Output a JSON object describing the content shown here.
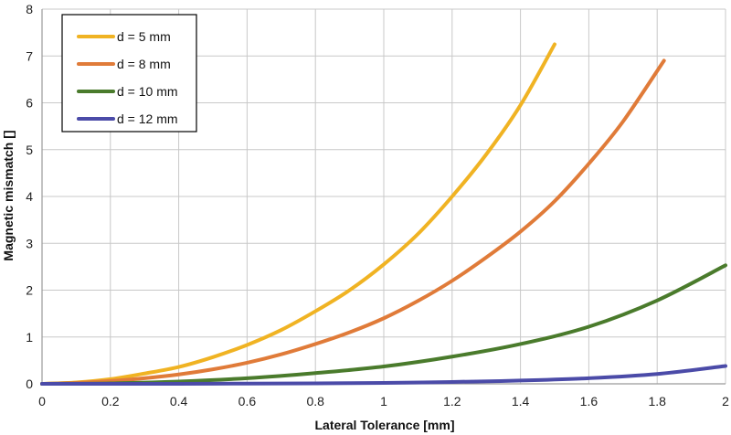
{
  "chart_data": {
    "type": "line",
    "xlabel": "Lateral Tolerance [mm]",
    "ylabel": "Magnetic mismatch []",
    "xlim": [
      0,
      2
    ],
    "ylim": [
      0,
      8
    ],
    "x_ticks": [
      "0",
      "0.2",
      "0.4",
      "0.6",
      "0.8",
      "1",
      "1.2",
      "1.4",
      "1.6",
      "1.8",
      "2"
    ],
    "y_ticks": [
      "0",
      "1",
      "2",
      "3",
      "4",
      "5",
      "6",
      "7",
      "8"
    ],
    "grid": true,
    "legend_position": "top-left",
    "series": [
      {
        "name": "d = 5 mm",
        "color": "#F0B323",
        "x": [
          0,
          0.1,
          0.2,
          0.3,
          0.4,
          0.5,
          0.6,
          0.7,
          0.8,
          0.9,
          1.0,
          1.1,
          1.2,
          1.3,
          1.4,
          1.5
        ],
        "y": [
          0,
          0.03,
          0.1,
          0.22,
          0.36,
          0.57,
          0.83,
          1.15,
          1.55,
          2.0,
          2.55,
          3.2,
          4.0,
          4.9,
          5.95,
          7.25
        ]
      },
      {
        "name": "d = 8 mm",
        "color": "#E07B39",
        "x": [
          0,
          0.1,
          0.2,
          0.3,
          0.4,
          0.5,
          0.6,
          0.7,
          0.8,
          0.9,
          1.0,
          1.1,
          1.2,
          1.3,
          1.4,
          1.5,
          1.6,
          1.7,
          1.82
        ],
        "y": [
          0,
          0.02,
          0.06,
          0.12,
          0.2,
          0.31,
          0.45,
          0.63,
          0.85,
          1.1,
          1.4,
          1.77,
          2.2,
          2.7,
          3.25,
          3.9,
          4.7,
          5.6,
          6.9
        ]
      },
      {
        "name": "d = 10 mm",
        "color": "#4A7B2C",
        "x": [
          0,
          0.2,
          0.4,
          0.6,
          0.8,
          1.0,
          1.2,
          1.4,
          1.6,
          1.8,
          2.0
        ],
        "y": [
          0,
          0.01,
          0.05,
          0.12,
          0.23,
          0.37,
          0.58,
          0.85,
          1.22,
          1.78,
          2.53
        ]
      },
      {
        "name": "d = 12 mm",
        "color": "#4B4BA8",
        "x": [
          0,
          0.2,
          0.4,
          0.6,
          0.8,
          1.0,
          1.2,
          1.4,
          1.6,
          1.8,
          2.0
        ],
        "y": [
          0,
          0.0,
          0.0,
          0.005,
          0.01,
          0.02,
          0.04,
          0.07,
          0.12,
          0.21,
          0.38
        ]
      }
    ]
  }
}
